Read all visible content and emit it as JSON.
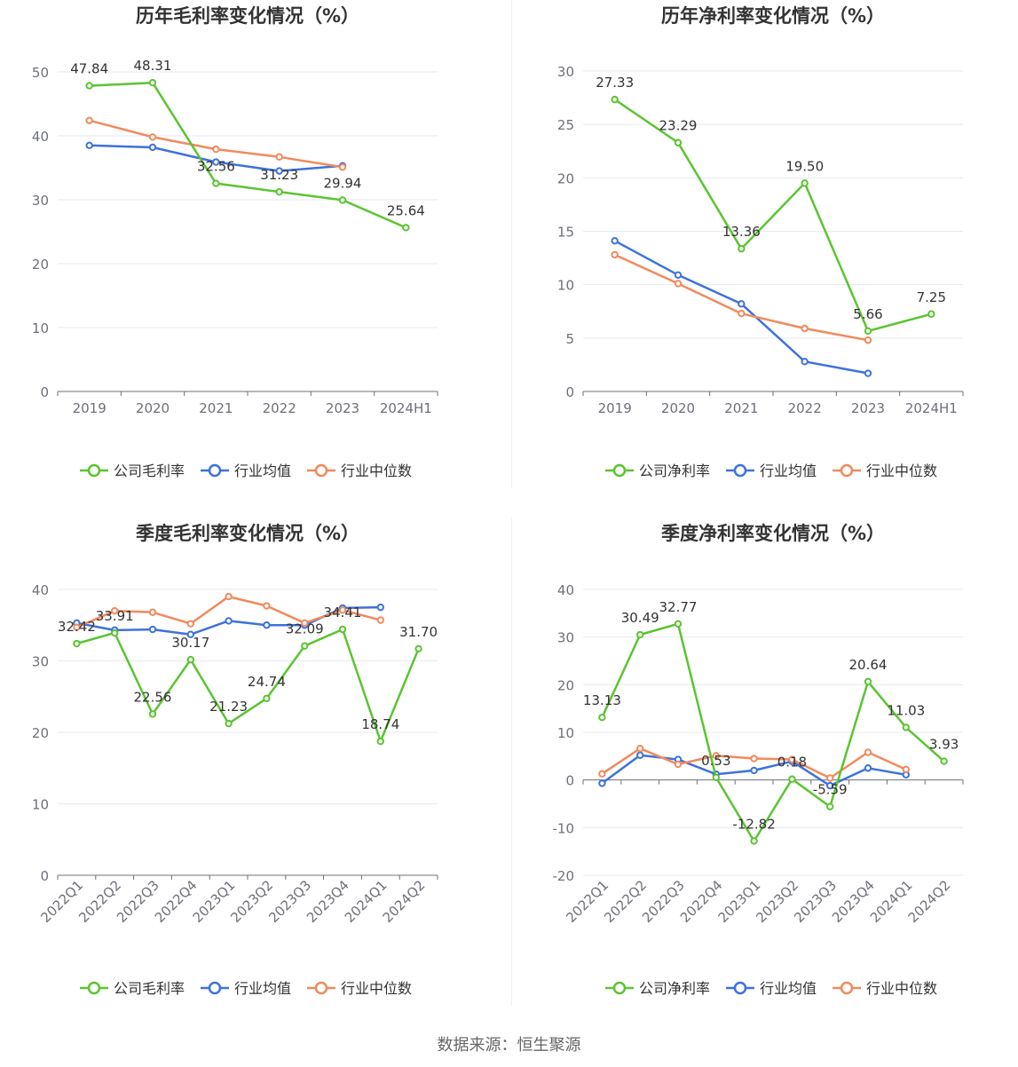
{
  "colors": {
    "company": "#5bc431",
    "industry_avg": "#3d72db",
    "industry_median": "#f08a5d"
  },
  "source": "数据来源：恒生聚源",
  "chart_data": [
    {
      "type": "line",
      "title": "历年毛利率变化情况（%）",
      "categories": [
        "2019",
        "2020",
        "2021",
        "2022",
        "2023",
        "2024H1"
      ],
      "ylim": [
        0,
        50
      ],
      "yticks": [
        0,
        10,
        20,
        30,
        40,
        50
      ],
      "grid": true,
      "legend": "bottom",
      "series": [
        {
          "key": "company",
          "name": "公司毛利率",
          "values": [
            47.84,
            48.31,
            32.56,
            31.23,
            29.94,
            25.64
          ],
          "labels": true
        },
        {
          "key": "industry_avg",
          "name": "行业均值",
          "values": [
            38.5,
            38.2,
            35.9,
            34.5,
            35.3,
            null
          ]
        },
        {
          "key": "industry_median",
          "name": "行业中位数",
          "values": [
            42.4,
            39.8,
            37.9,
            36.7,
            35.1,
            null
          ]
        }
      ]
    },
    {
      "type": "line",
      "title": "历年净利率变化情况（%）",
      "categories": [
        "2019",
        "2020",
        "2021",
        "2022",
        "2023",
        "2024H1"
      ],
      "ylim": [
        0,
        30
      ],
      "yticks": [
        0,
        5,
        10,
        15,
        20,
        25,
        30
      ],
      "grid": true,
      "legend": "bottom",
      "series": [
        {
          "key": "company",
          "name": "公司净利率",
          "values": [
            27.33,
            23.29,
            13.36,
            19.5,
            5.66,
            7.25
          ],
          "labels": true
        },
        {
          "key": "industry_avg",
          "name": "行业均值",
          "values": [
            14.1,
            10.9,
            8.2,
            2.8,
            1.7,
            null
          ]
        },
        {
          "key": "industry_median",
          "name": "行业中位数",
          "values": [
            12.8,
            10.1,
            7.3,
            5.9,
            4.8,
            null
          ]
        }
      ]
    },
    {
      "type": "line",
      "title": "季度毛利率变化情况（%）",
      "categories": [
        "2022Q1",
        "2022Q2",
        "2022Q3",
        "2022Q4",
        "2023Q1",
        "2023Q2",
        "2023Q3",
        "2023Q4",
        "2024Q1",
        "2024Q2"
      ],
      "ylim": [
        0,
        40
      ],
      "yticks": [
        0,
        10,
        20,
        30,
        40
      ],
      "grid": true,
      "legend": "bottom",
      "series": [
        {
          "key": "company",
          "name": "公司毛利率",
          "values": [
            32.42,
            33.91,
            22.56,
            30.17,
            21.23,
            24.74,
            32.09,
            34.41,
            18.74,
            31.7
          ],
          "labels": true
        },
        {
          "key": "industry_avg",
          "name": "行业均值",
          "values": [
            35.3,
            34.3,
            34.4,
            33.7,
            35.6,
            35.0,
            35.0,
            37.4,
            37.5,
            null
          ]
        },
        {
          "key": "industry_median",
          "name": "行业中位数",
          "values": [
            34.7,
            37.0,
            36.8,
            35.2,
            39.0,
            37.7,
            35.3,
            37.1,
            35.7,
            null
          ]
        }
      ]
    },
    {
      "type": "line",
      "title": "季度净利率变化情况（%）",
      "categories": [
        "2022Q1",
        "2022Q2",
        "2022Q3",
        "2022Q4",
        "2023Q1",
        "2023Q2",
        "2023Q3",
        "2023Q4",
        "2024Q1",
        "2024Q2"
      ],
      "ylim": [
        -20,
        40
      ],
      "yticks": [
        -20,
        -10,
        0,
        10,
        20,
        30,
        40
      ],
      "grid": true,
      "legend": "bottom",
      "series": [
        {
          "key": "company",
          "name": "公司净利率",
          "values": [
            13.13,
            30.49,
            32.77,
            0.53,
            -12.82,
            0.18,
            -5.59,
            20.64,
            11.03,
            3.93
          ],
          "labels": true
        },
        {
          "key": "industry_avg",
          "name": "行业均值",
          "values": [
            -0.7,
            5.2,
            4.3,
            1.2,
            2.0,
            3.9,
            -1.2,
            2.5,
            1.1,
            null
          ]
        },
        {
          "key": "industry_median",
          "name": "行业中位数",
          "values": [
            1.3,
            6.6,
            3.3,
            5.1,
            4.5,
            4.3,
            0.4,
            5.8,
            2.2,
            null
          ]
        }
      ]
    }
  ]
}
